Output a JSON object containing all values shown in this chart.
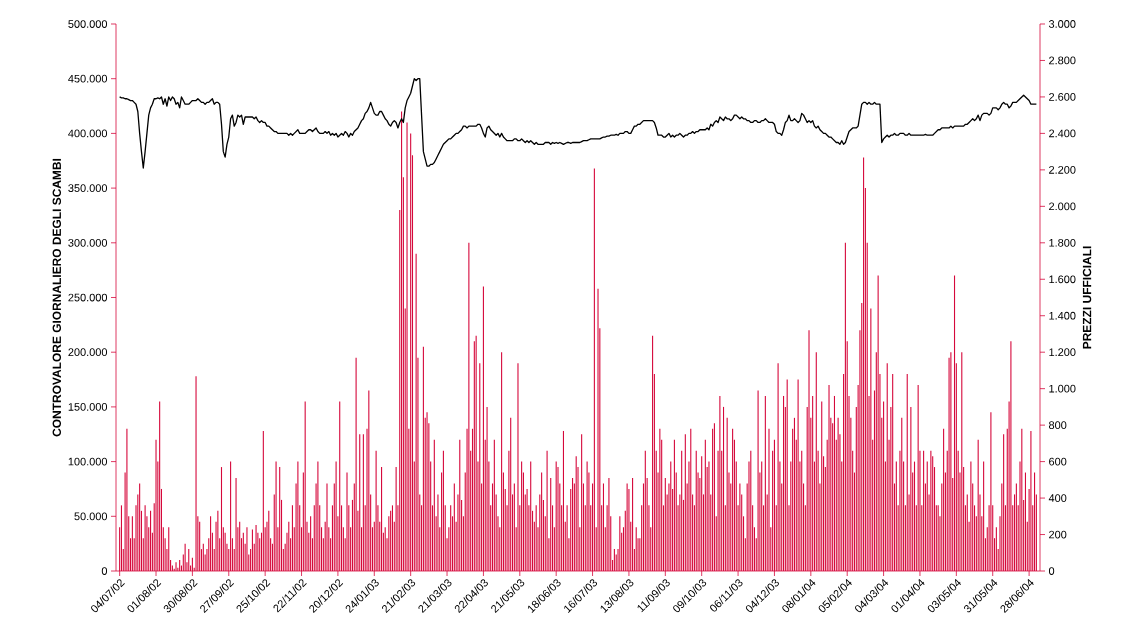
{
  "chart_data": {
    "type": "bar",
    "ylabel": "CONTROVALORE GIORNALIERO DEGLI SCAMBI",
    "y2label": "PREZZI UFFICIALI",
    "categories": [
      "04/07/02",
      null,
      null,
      null,
      null,
      null,
      null,
      null,
      null,
      null,
      null,
      null,
      null,
      null,
      null,
      null,
      null,
      null,
      null,
      null,
      "01/08/02",
      null,
      null,
      null,
      null,
      null,
      null,
      null,
      null,
      null,
      null,
      null,
      null,
      null,
      null,
      null,
      null,
      null,
      null,
      null,
      "30/08/02",
      null,
      null,
      null,
      null,
      null,
      null,
      null,
      null,
      null,
      null,
      null,
      null,
      null,
      null,
      null,
      null,
      null,
      null,
      null,
      "27/09/02",
      null,
      null,
      null,
      null,
      null,
      null,
      null,
      null,
      null,
      null,
      null,
      null,
      null,
      null,
      null,
      null,
      null,
      null,
      null,
      "25/10/02",
      null,
      null,
      null,
      null,
      null,
      null,
      null,
      null,
      null,
      null,
      null,
      null,
      null,
      null,
      null,
      null,
      null,
      null,
      null,
      "22/11/02",
      null,
      null,
      null,
      null,
      null,
      null,
      null,
      null,
      null,
      null,
      null,
      null,
      null,
      null,
      null,
      null,
      null,
      null,
      null,
      "20/12/02",
      null,
      null,
      null,
      null,
      null,
      null,
      null,
      null,
      null,
      null,
      null,
      null,
      null,
      null,
      null,
      null,
      null,
      null,
      null,
      "24/01/03",
      null,
      null,
      null,
      null,
      null,
      null,
      null,
      null,
      null,
      null,
      null,
      null,
      null,
      null,
      null,
      null,
      null,
      null,
      null,
      "21/02/03",
      null,
      null,
      null,
      null,
      null,
      null,
      null,
      null,
      null,
      null,
      null,
      null,
      null,
      null,
      null,
      null,
      null,
      null,
      null,
      "21/03/03",
      null,
      null,
      null,
      null,
      null,
      null,
      null,
      null,
      null,
      null,
      null,
      null,
      null,
      null,
      null,
      null,
      null,
      null,
      null,
      "22/04/03",
      null,
      null,
      null,
      null,
      null,
      null,
      null,
      null,
      null,
      null,
      null,
      null,
      null,
      null,
      null,
      null,
      null,
      null,
      null,
      "21/05/03",
      null,
      null,
      null,
      null,
      null,
      null,
      null,
      null,
      null,
      null,
      null,
      null,
      null,
      null,
      null,
      null,
      null,
      null,
      null,
      "18/06/03",
      null,
      null,
      null,
      null,
      null,
      null,
      null,
      null,
      null,
      null,
      null,
      null,
      null,
      null,
      null,
      null,
      null,
      null,
      null,
      "16/07/03",
      null,
      null,
      null,
      null,
      null,
      null,
      null,
      null,
      null,
      null,
      null,
      null,
      null,
      null,
      null,
      null,
      null,
      null,
      null,
      "13/08/03",
      null,
      null,
      null,
      null,
      null,
      null,
      null,
      null,
      null,
      null,
      null,
      null,
      null,
      null,
      null,
      null,
      null,
      null,
      null,
      "11/09/03",
      null,
      null,
      null,
      null,
      null,
      null,
      null,
      null,
      null,
      null,
      null,
      null,
      null,
      null,
      null,
      null,
      null,
      null,
      null,
      "09/10/03",
      null,
      null,
      null,
      null,
      null,
      null,
      null,
      null,
      null,
      null,
      null,
      null,
      null,
      null,
      null,
      null,
      null,
      null,
      null,
      "06/11/03",
      null,
      null,
      null,
      null,
      null,
      null,
      null,
      null,
      null,
      null,
      null,
      null,
      null,
      null,
      null,
      null,
      null,
      null,
      null,
      "04/12/03",
      null,
      null,
      null,
      null,
      null,
      null,
      null,
      null,
      null,
      null,
      null,
      null,
      null,
      null,
      null,
      null,
      null,
      null,
      null,
      "08/01/04",
      null,
      null,
      null,
      null,
      null,
      null,
      null,
      null,
      null,
      null,
      null,
      null,
      null,
      null,
      null,
      null,
      null,
      null,
      null,
      "05/02/04",
      null,
      null,
      null,
      null,
      null,
      null,
      null,
      null,
      null,
      null,
      null,
      null,
      null,
      null,
      null,
      null,
      null,
      null,
      null,
      "04/03/04",
      null,
      null,
      null,
      null,
      null,
      null,
      null,
      null,
      null,
      null,
      null,
      null,
      null,
      null,
      null,
      null,
      null,
      null,
      null,
      "01/04/04",
      null,
      null,
      null,
      null,
      null,
      null,
      null,
      null,
      null,
      null,
      null,
      null,
      null,
      null,
      null,
      null,
      null,
      null,
      null,
      "03/05/04",
      null,
      null,
      null,
      null,
      null,
      null,
      null,
      null,
      null,
      null,
      null,
      null,
      null,
      null,
      null,
      null,
      null,
      null,
      null,
      "31/05/04",
      null,
      null,
      null,
      null,
      null,
      null,
      null,
      null,
      null,
      null,
      null,
      null,
      null,
      null,
      null,
      null,
      null,
      null,
      null,
      "28/06/04",
      null,
      null,
      null,
      null
    ],
    "series": [
      {
        "color": "#d6083b",
        "values": [
          40000,
          60000,
          20000,
          90000,
          130000,
          50000,
          30000,
          50000,
          30000,
          60000,
          70000,
          80000,
          55000,
          30000,
          60000,
          50000,
          40000,
          55000,
          35000,
          62000,
          120000,
          100000,
          155000,
          75000,
          40000,
          30000,
          20000,
          40000,
          10000,
          5000,
          2000,
          8000,
          3000,
          10000,
          5000,
          15000,
          25000,
          8000,
          20000,
          5000,
          12000,
          3000,
          178000,
          50000,
          45000,
          20000,
          25000,
          15000,
          20000,
          30000,
          50000,
          35000,
          20000,
          45000,
          55000,
          30000,
          95000,
          40000,
          35000,
          25000,
          20000,
          100000,
          30000,
          20000,
          85000,
          40000,
          45000,
          30000,
          35000,
          25000,
          40000,
          15000,
          20000,
          38000,
          25000,
          42000,
          35000,
          30000,
          35000,
          128000,
          40000,
          45000,
          55000,
          30000,
          25000,
          70000,
          100000,
          40000,
          95000,
          65000,
          20000,
          25000,
          35000,
          45000,
          30000,
          60000,
          40000,
          80000,
          100000,
          60000,
          40000,
          90000,
          155000,
          45000,
          35000,
          50000,
          30000,
          60000,
          80000,
          100000,
          60000,
          40000,
          30000,
          45000,
          80000,
          40000,
          30000,
          60000,
          80000,
          100000,
          50000,
          155000,
          60000,
          40000,
          30000,
          90000,
          60000,
          40000,
          65000,
          80000,
          195000,
          55000,
          125000,
          40000,
          125000,
          60000,
          130000,
          165000,
          70000,
          40000,
          45000,
          110000,
          60000,
          45000,
          95000,
          35000,
          40000,
          30000,
          50000,
          55000,
          60000,
          45000,
          95000,
          60000,
          330000,
          420000,
          360000,
          240000,
          410000,
          130000,
          400000,
          380000,
          100000,
          290000,
          195000,
          70000,
          60000,
          205000,
          140000,
          145000,
          135000,
          100000,
          60000,
          120000,
          50000,
          70000,
          40000,
          90000,
          110000,
          60000,
          30000,
          40000,
          60000,
          50000,
          80000,
          45000,
          70000,
          120000,
          65000,
          50000,
          90000,
          130000,
          300000,
          110000,
          130000,
          210000,
          215000,
          100000,
          190000,
          80000,
          260000,
          120000,
          150000,
          100000,
          60000,
          80000,
          120000,
          70000,
          50000,
          40000,
          200000,
          90000,
          75000,
          60000,
          110000,
          140000,
          70000,
          80000,
          40000,
          190000,
          60000,
          100000,
          90000,
          70000,
          75000,
          60000,
          100000,
          55000,
          45000,
          60000,
          40000,
          70000,
          90000,
          65000,
          50000,
          110000,
          30000,
          85000,
          60000,
          40000,
          100000,
          95000,
          80000,
          60000,
          128000,
          45000,
          60000,
          30000,
          75000,
          85000,
          80000,
          105000,
          95000,
          40000,
          125000,
          80000,
          60000,
          100000,
          90000,
          60000,
          80000,
          368000,
          40000,
          258000,
          222000,
          60000,
          80000,
          40000,
          60000,
          85000,
          50000,
          10000,
          20000,
          15000,
          20000,
          50000,
          35000,
          40000,
          55000,
          80000,
          75000,
          45000,
          85000,
          20000,
          40000,
          30000,
          30000,
          60000,
          80000,
          110000,
          85000,
          60000,
          40000,
          215000,
          180000,
          110000,
          90000,
          130000,
          120000,
          60000,
          85000,
          70000,
          80000,
          100000,
          75000,
          120000,
          90000,
          60000,
          70000,
          110000,
          65000,
          125000,
          80000,
          100000,
          130000,
          70000,
          60000,
          110000,
          90000,
          85000,
          105000,
          70000,
          120000,
          95000,
          100000,
          70000,
          130000,
          135000,
          50000,
          110000,
          160000,
          110000,
          150000,
          60000,
          140000,
          90000,
          80000,
          130000,
          120000,
          100000,
          60000,
          80000,
          70000,
          50000,
          30000,
          80000,
          100000,
          110000,
          60000,
          40000,
          30000,
          165000,
          90000,
          100000,
          60000,
          160000,
          70000,
          130000,
          40000,
          110000,
          120000,
          60000,
          190000,
          100000,
          80000,
          160000,
          150000,
          175000,
          60000,
          100000,
          130000,
          140000,
          120000,
          175000,
          100000,
          110000,
          80000,
          60000,
          150000,
          220000,
          140000,
          160000,
          100000,
          200000,
          110000,
          80000,
          155000,
          105000,
          95000,
          120000,
          170000,
          140000,
          135000,
          160000,
          120000,
          140000,
          125000,
          100000,
          180000,
          300000,
          210000,
          160000,
          140000,
          110000,
          90000,
          150000,
          170000,
          220000,
          245000,
          378000,
          350000,
          300000,
          160000,
          240000,
          120000,
          165000,
          200000,
          270000,
          180000,
          140000,
          155000,
          100000,
          190000,
          120000,
          150000,
          180000,
          80000,
          100000,
          60000,
          110000,
          140000,
          100000,
          60000,
          180000,
          70000,
          150000,
          90000,
          100000,
          60000,
          170000,
          110000,
          60000,
          110000,
          80000,
          100000,
          70000,
          110000,
          105000,
          95000,
          60000,
          60000,
          50000,
          80000,
          130000,
          90000,
          110000,
          195000,
          200000,
          85000,
          270000,
          190000,
          110000,
          90000,
          200000,
          95000,
          60000,
          70000,
          45000,
          100000,
          80000,
          60000,
          50000,
          120000,
          70000,
          50000,
          100000,
          30000,
          40000,
          60000,
          145000,
          60000,
          30000,
          40000,
          20000,
          50000,
          80000,
          125000,
          60000,
          130000,
          155000,
          210000,
          60000,
          70000,
          80000,
          60000,
          100000,
          130000,
          65000,
          90000,
          45000,
          75000,
          128000,
          60000,
          90000,
          70000
        ]
      },
      {
        "type": "line",
        "color": "#000000",
        "axis": "y2",
        "values": [
          2600,
          2595,
          2595,
          2590,
          2590,
          2585,
          2580,
          2580,
          2570,
          2560,
          2520,
          2400,
          2300,
          2210,
          2300,
          2400,
          2500,
          2540,
          2560,
          2590,
          2590,
          2595,
          2590,
          2600,
          2560,
          2590,
          2550,
          2600,
          2580,
          2600,
          2590,
          2560,
          2570,
          2540,
          2600,
          2580,
          2560,
          2560,
          2560,
          2570,
          2580,
          2580,
          2580,
          2590,
          2580,
          2570,
          2570,
          2560,
          2570,
          2570,
          2580,
          2590,
          2560,
          2570,
          2570,
          2560,
          2450,
          2300,
          2270,
          2340,
          2380,
          2480,
          2500,
          2440,
          2460,
          2500,
          2490,
          2500,
          2450,
          2490,
          2490,
          2490,
          2490,
          2490,
          2480,
          2490,
          2470,
          2460,
          2470,
          2460,
          2460,
          2440,
          2440,
          2430,
          2420,
          2410,
          2410,
          2400,
          2400,
          2400,
          2400,
          2400,
          2400,
          2390,
          2400,
          2390,
          2400,
          2410,
          2420,
          2400,
          2400,
          2400,
          2400,
          2410,
          2420,
          2420,
          2410,
          2420,
          2430,
          2410,
          2400,
          2400,
          2400,
          2410,
          2400,
          2410,
          2390,
          2400,
          2390,
          2400,
          2380,
          2390,
          2400,
          2390,
          2410,
          2400,
          2380,
          2400,
          2390,
          2410,
          2420,
          2430,
          2450,
          2470,
          2480,
          2510,
          2520,
          2540,
          2570,
          2540,
          2510,
          2500,
          2500,
          2520,
          2520,
          2500,
          2480,
          2470,
          2450,
          2440,
          2460,
          2470,
          2460,
          2430,
          2460,
          2480,
          2460,
          2540,
          2580,
          2600,
          2620,
          2660,
          2700,
          2690,
          2700,
          2700,
          2500,
          2300,
          2260,
          2220,
          2220,
          2230,
          2230,
          2240,
          2260,
          2280,
          2300,
          2320,
          2340,
          2350,
          2360,
          2370,
          2370,
          2380,
          2390,
          2400,
          2400,
          2410,
          2420,
          2440,
          2440,
          2430,
          2440,
          2440,
          2440,
          2440,
          2440,
          2450,
          2450,
          2430,
          2400,
          2380,
          2430,
          2440,
          2420,
          2410,
          2400,
          2390,
          2400,
          2380,
          2400,
          2380,
          2370,
          2360,
          2360,
          2360,
          2360,
          2370,
          2370,
          2360,
          2360,
          2370,
          2360,
          2350,
          2360,
          2350,
          2360,
          2350,
          2340,
          2350,
          2340,
          2340,
          2340,
          2340,
          2350,
          2350,
          2350,
          2340,
          2350,
          2345,
          2350,
          2345,
          2350,
          2345,
          2340,
          2345,
          2350,
          2350,
          2345,
          2350,
          2350,
          2350,
          2350,
          2350,
          2355,
          2360,
          2360,
          2360,
          2365,
          2370,
          2370,
          2370,
          2370,
          2370,
          2370,
          2375,
          2380,
          2380,
          2385,
          2385,
          2390,
          2390,
          2390,
          2395,
          2390,
          2400,
          2400,
          2400,
          2410,
          2410,
          2400,
          2400,
          2420,
          2440,
          2440,
          2450,
          2450,
          2460,
          2470,
          2470,
          2470,
          2470,
          2470,
          2470,
          2460,
          2430,
          2390,
          2390,
          2390,
          2380,
          2380,
          2390,
          2400,
          2380,
          2390,
          2380,
          2390,
          2390,
          2400,
          2390,
          2380,
          2390,
          2390,
          2400,
          2400,
          2410,
          2400,
          2410,
          2410,
          2420,
          2420,
          2420,
          2420,
          2430,
          2420,
          2450,
          2440,
          2460,
          2470,
          2460,
          2490,
          2480,
          2470,
          2490,
          2480,
          2480,
          2470,
          2480,
          2500,
          2500,
          2490,
          2480,
          2490,
          2480,
          2480,
          2470,
          2470,
          2460,
          2460,
          2470,
          2470,
          2460,
          2460,
          2470,
          2470,
          2480,
          2470,
          2460,
          2460,
          2460,
          2450,
          2410,
          2400,
          2400,
          2390,
          2420,
          2460,
          2470,
          2500,
          2470,
          2470,
          2480,
          2470,
          2460,
          2470,
          2510,
          2500,
          2480,
          2460,
          2470,
          2460,
          2470,
          2440,
          2430,
          2440,
          2420,
          2410,
          2400,
          2400,
          2390,
          2380,
          2380,
          2370,
          2360,
          2350,
          2350,
          2340,
          2360,
          2340,
          2350,
          2380,
          2410,
          2420,
          2430,
          2430,
          2430,
          2440,
          2500,
          2560,
          2570,
          2570,
          2560,
          2570,
          2560,
          2560,
          2570,
          2560,
          2560,
          2560,
          2350,
          2370,
          2380,
          2390,
          2380,
          2390,
          2390,
          2400,
          2390,
          2390,
          2400,
          2400,
          2400,
          2390,
          2390,
          2400,
          2390,
          2390,
          2390,
          2390,
          2390,
          2390,
          2390,
          2390,
          2395,
          2390,
          2390,
          2390,
          2390,
          2400,
          2410,
          2420,
          2420,
          2430,
          2430,
          2430,
          2430,
          2430,
          2440,
          2430,
          2440,
          2440,
          2440,
          2440,
          2440,
          2440,
          2450,
          2450,
          2460,
          2470,
          2480,
          2470,
          2480,
          2500,
          2470,
          2500,
          2510,
          2510,
          2510,
          2500,
          2510,
          2540,
          2540,
          2540,
          2530,
          2540,
          2560,
          2570,
          2560,
          2560,
          2540,
          2550,
          2570,
          2570,
          2570,
          2580,
          2590,
          2600,
          2610,
          2600,
          2590,
          2580,
          2560,
          2560,
          2560,
          2560
        ]
      }
    ],
    "ylim": [
      0,
      500000
    ],
    "yticks": [
      0,
      {
        "value": 50000,
        "label": "50.000"
      },
      {
        "value": 100000,
        "label": "100.000"
      },
      {
        "value": 150000,
        "label": "150.000"
      },
      {
        "value": 200000,
        "label": "200.000"
      },
      {
        "value": 250000,
        "label": "250.000"
      },
      {
        "value": 300000,
        "label": "300.000"
      },
      {
        "value": 350000,
        "label": "350.000"
      },
      {
        "value": 400000,
        "label": "400.000"
      },
      {
        "value": 450000,
        "label": "450.000"
      },
      {
        "value": 500000,
        "label": "500.000"
      }
    ],
    "y2lim": [
      0,
      3000
    ],
    "y2ticks": [
      0,
      200,
      400,
      600,
      800,
      {
        "value": 1000,
        "label": "1.000"
      },
      {
        "value": 1200,
        "label": "1.200"
      },
      {
        "value": 1400,
        "label": "1.400"
      },
      {
        "value": 1600,
        "label": "1.600"
      },
      {
        "value": 1800,
        "label": "1.800"
      },
      {
        "value": 2000,
        "label": "2.000"
      },
      {
        "value": 2200,
        "label": "2.200"
      },
      {
        "value": 2400,
        "label": "2.400"
      },
      {
        "value": 2600,
        "label": "2.600"
      },
      {
        "value": 2800,
        "label": "2.800"
      },
      {
        "value": 3000,
        "label": "3.000"
      }
    ]
  }
}
